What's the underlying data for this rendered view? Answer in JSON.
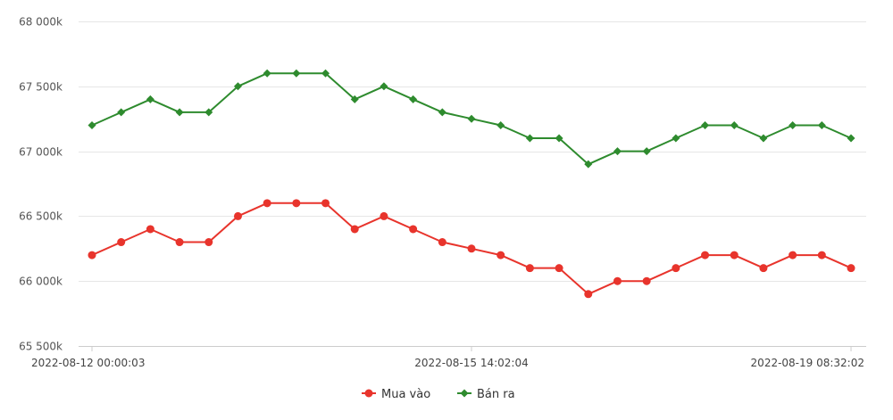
{
  "colors": {
    "buy": "#e8342c",
    "sell": "#2e8b2e",
    "grid": "#e6e6e6",
    "axis": "#cccccc"
  },
  "chart_data": {
    "type": "line",
    "x_tick_labels": [
      "2022-08-12 00:00:03",
      "2022-08-15 14:02:04",
      "2022-08-19 08:32:02"
    ],
    "x_tick_indices": [
      0,
      13,
      26
    ],
    "y_tick_labels": [
      "65 500k",
      "66 000k",
      "66 500k",
      "67 000k",
      "67 500k",
      "68 000k"
    ],
    "y_tick_values": [
      65500,
      66000,
      66500,
      67000,
      67500,
      68000
    ],
    "ylim": [
      65500,
      68000
    ],
    "grid": true,
    "legend_position": "bottom-center",
    "series": [
      {
        "name": "Mua vào",
        "color": "#e8342c",
        "marker": "circle",
        "values": [
          66200,
          66300,
          66400,
          66300,
          66300,
          66500,
          66600,
          66600,
          66600,
          66400,
          66500,
          66400,
          66300,
          66250,
          66200,
          66100,
          66100,
          65900,
          66000,
          66000,
          66100,
          66200,
          66200,
          66100,
          66200,
          66200,
          66100
        ]
      },
      {
        "name": "Bán ra",
        "color": "#2e8b2e",
        "marker": "diamond",
        "values": [
          67200,
          67300,
          67400,
          67300,
          67300,
          67500,
          67600,
          67600,
          67600,
          67400,
          67500,
          67400,
          67300,
          67250,
          67200,
          67100,
          67100,
          66900,
          67000,
          67000,
          67100,
          67200,
          67200,
          67100,
          67200,
          67200,
          67100
        ]
      }
    ]
  }
}
